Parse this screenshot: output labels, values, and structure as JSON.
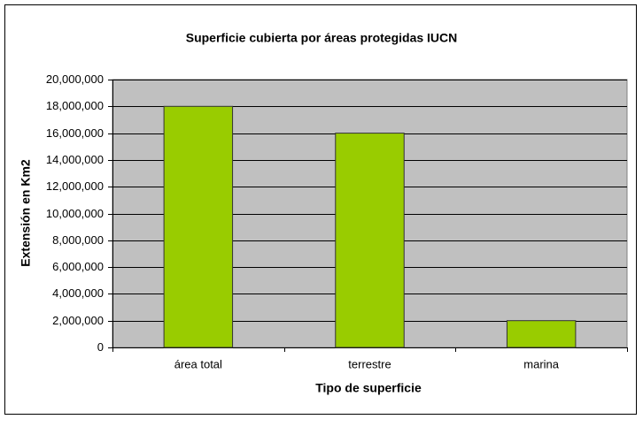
{
  "chart_data": {
    "type": "bar",
    "title": "Superficie cubierta por áreas protegidas IUCN",
    "x_label": "Tipo de superficie",
    "y_label": "Extensión en Km2",
    "categories": [
      "área total",
      "terrestre",
      "marina"
    ],
    "values": [
      18000000,
      16000000,
      2000000
    ],
    "color": "#99cc00",
    "ylim": [
      0,
      20000000
    ],
    "yticks": [
      0,
      {
        "value": 2000000,
        "label": "2,000,000"
      },
      {
        "value": 4000000,
        "label": "4,000,000"
      },
      {
        "value": 6000000,
        "label": "6,000,000"
      },
      {
        "value": 8000000,
        "label": "8,000,000"
      },
      {
        "value": 10000000,
        "label": "10,000,000"
      },
      {
        "value": 12000000,
        "label": "12,000,000"
      },
      {
        "value": 14000000,
        "label": "14,000,000"
      },
      {
        "value": 16000000,
        "label": "16,000,000"
      },
      {
        "value": 18000000,
        "label": "18,000,000"
      },
      {
        "value": 20000000,
        "label": "20,000,000"
      }
    ],
    "grid": true
  }
}
